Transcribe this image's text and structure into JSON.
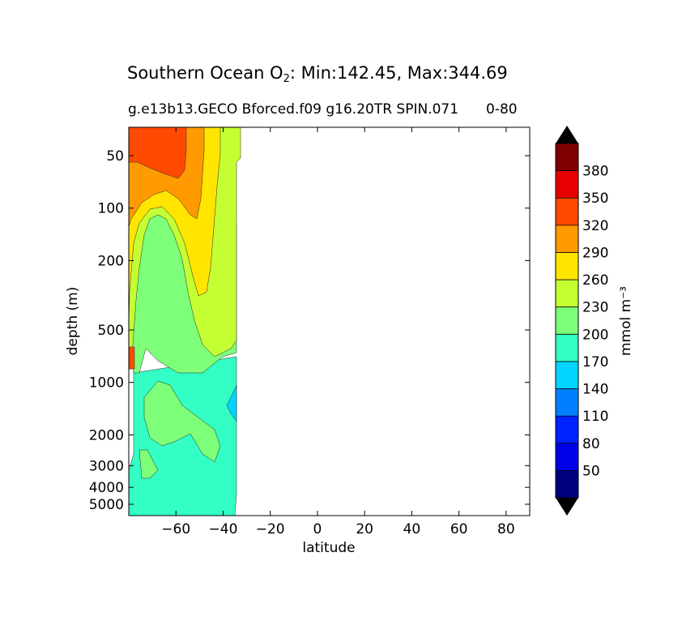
{
  "title": {
    "prefix": "Southern Ocean O",
    "sub": "2",
    "suffix": ": Min:142.45, Max:344.69"
  },
  "subtitle": {
    "part1": "g.e13b13.GECO Bforced.f09 g16.20TR SPIN.071",
    "part2": "0-80"
  },
  "chart_data": {
    "type": "contourf",
    "xlabel": "latitude",
    "ylabel": "depth (m)",
    "xlim": [
      -80,
      90
    ],
    "x_ticks": [
      -60,
      -40,
      -20,
      0,
      20,
      40,
      60,
      80
    ],
    "x_tick_labels": [
      "−60",
      "−40",
      "−20",
      "0",
      "20",
      "40",
      "60",
      "80"
    ],
    "y_scale": "log (inverted, depth)",
    "y_ticks": [
      50,
      100,
      200,
      500,
      1000,
      2000,
      3000,
      4000,
      5000
    ],
    "y_tick_labels": [
      "50",
      "100",
      "200",
      "500",
      "1000",
      "2000",
      "3000",
      "4000",
      "5000"
    ],
    "data_extent_lat": [
      -80,
      -34
    ],
    "colorbar": {
      "label": "mmol m⁻³",
      "levels": [
        20,
        50,
        80,
        110,
        140,
        170,
        200,
        230,
        260,
        290,
        320,
        350,
        380,
        410
      ],
      "tick_labels": [
        "50",
        "80",
        "110",
        "140",
        "170",
        "200",
        "230",
        "260",
        "290",
        "320",
        "350",
        "380"
      ],
      "colors": [
        "#00007f",
        "#0000e6",
        "#0022ff",
        "#0080ff",
        "#00d4ff",
        "#33ffc4",
        "#7dff7a",
        "#c4ff33",
        "#ffe500",
        "#ff9a00",
        "#ff4a00",
        "#e60000",
        "#7f0000"
      ],
      "extend_under": "#000000",
      "extend_over": "#000000"
    },
    "fields": [
      {
        "level": 170,
        "lat_range": [
          -78,
          -34
        ],
        "depth_range": [
          500,
          5500
        ]
      },
      {
        "level": 200,
        "lat_range": [
          -78,
          -34
        ],
        "depth_range": [
          120,
          3000
        ]
      },
      {
        "level": 230,
        "lat_range": [
          -80,
          -32
        ],
        "depth_range": [
          20,
          800
        ]
      },
      {
        "level": 260,
        "lat_range": [
          -80,
          -45
        ],
        "depth_range": [
          20,
          800
        ]
      },
      {
        "level": 290,
        "lat_range": [
          -80,
          -46
        ],
        "depth_range": [
          20,
          160
        ]
      },
      {
        "level": 320,
        "lat_range": [
          -80,
          -62
        ],
        "depth_range": [
          20,
          70
        ]
      },
      {
        "level": 140,
        "lat_range": [
          -38,
          -34
        ],
        "depth_range": [
          1100,
          2000
        ]
      }
    ]
  }
}
